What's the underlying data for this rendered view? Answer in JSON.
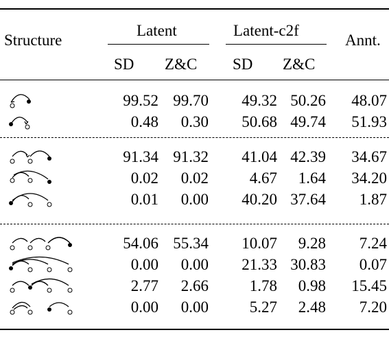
{
  "headers": {
    "structure": "Structure",
    "group1": "Latent",
    "group2": "Latent-c2f",
    "annt": "Annt.",
    "sub": [
      "SD",
      "Z&C",
      "SD",
      "Z&C"
    ]
  },
  "groups": [
    {
      "rows": [
        {
          "structure_icon": "two-node-arc-right-head-icon",
          "values": [
            "99.52",
            "99.70",
            "49.32",
            "50.26",
            "48.07"
          ]
        },
        {
          "structure_icon": "two-node-arc-left-head-icon",
          "values": [
            "0.48",
            "0.30",
            "50.68",
            "49.74",
            "51.93"
          ]
        }
      ]
    },
    {
      "rows": [
        {
          "structure_icon": "three-node-chain-right-head-icon",
          "values": [
            "91.34",
            "91.32",
            "41.04",
            "42.39",
            "34.67"
          ]
        },
        {
          "structure_icon": "three-node-middle-head-icon",
          "values": [
            "0.02",
            "0.02",
            "4.67",
            "1.64",
            "34.20"
          ]
        },
        {
          "structure_icon": "three-node-left-head-icon",
          "values": [
            "0.01",
            "0.00",
            "40.20",
            "37.64",
            "1.87"
          ]
        }
      ]
    },
    {
      "rows": [
        {
          "structure_icon": "four-node-chain-right-head-icon",
          "values": [
            "54.06",
            "55.34",
            "10.07",
            "9.28",
            "7.24"
          ]
        },
        {
          "structure_icon": "four-node-left-head-icon",
          "values": [
            "0.00",
            "0.00",
            "21.33",
            "30.83",
            "0.07"
          ]
        },
        {
          "structure_icon": "four-node-second-head-icon",
          "values": [
            "2.77",
            "2.66",
            "1.78",
            "0.98",
            "15.45"
          ]
        },
        {
          "structure_icon": "four-node-third-head-icon",
          "values": [
            "0.00",
            "0.00",
            "5.27",
            "2.48",
            "7.20"
          ]
        }
      ]
    }
  ]
}
